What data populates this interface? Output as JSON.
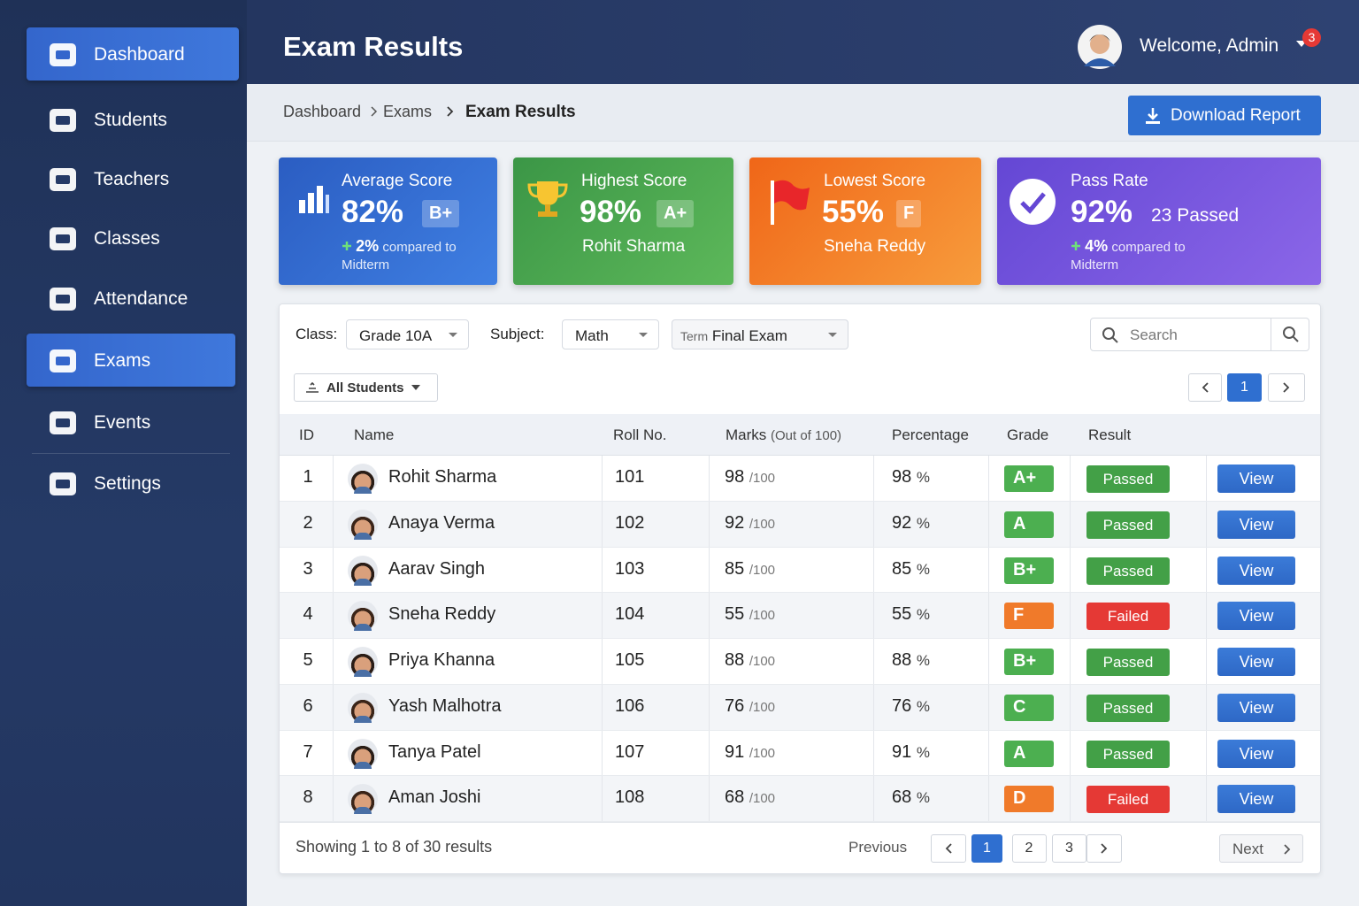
{
  "sidebar": {
    "items": [
      {
        "label": "Dashboard",
        "active": true
      },
      {
        "label": "Students",
        "active": false
      },
      {
        "label": "Teachers",
        "active": false
      },
      {
        "label": "Classes",
        "active": false
      },
      {
        "label": "Attendance",
        "active": false
      },
      {
        "label": "Exams",
        "active": true
      },
      {
        "label": "Events",
        "active": false
      },
      {
        "label": "Settings",
        "active": false
      }
    ]
  },
  "header": {
    "title": "Exam Results",
    "welcome": "Welcome, Admin",
    "notifications": 3
  },
  "breadcrumb": [
    "Dashboard",
    "Exams",
    "Exam Results"
  ],
  "download_button": "Download Report",
  "cards": [
    {
      "label": "Average Score",
      "value": "82%",
      "badge": "B+",
      "change": "2%",
      "note": "compared to Midterm"
    },
    {
      "label": "Highest Score",
      "value": "98%",
      "badge": "A+",
      "student": "Rohit Sharma"
    },
    {
      "label": "Lowest Score",
      "value": "55%",
      "badge": "F",
      "student": "Sneha Reddy"
    },
    {
      "label": "Pass Rate",
      "value": "92%",
      "detail": "23 Passed",
      "change": "4%",
      "note": "compared to Midterm"
    }
  ],
  "filters": {
    "class_label": "Class:",
    "class_value": "Grade 10A",
    "subject_label": "Subject:",
    "subject_value": "Math",
    "term_label": "Term",
    "term_value": "Final Exam",
    "search_placeholder": "Search",
    "group": "All Students",
    "page": 1
  },
  "table": {
    "columns": [
      "ID",
      "Name",
      "Roll No.",
      "Marks",
      "Percentage",
      "Grade",
      "Result"
    ],
    "marks_note": "(Out of 100)",
    "marks_suffix": "/100",
    "percent_unit": "%",
    "action": "View",
    "rows": [
      {
        "id": 1,
        "name": "Rohit Sharma",
        "roll": 101,
        "marks": 98,
        "percentage": 98,
        "grade": "A+",
        "grade_color": "#4caf50",
        "result": "Passed",
        "result_color": "#43a047"
      },
      {
        "id": 2,
        "name": "Anaya Verma",
        "roll": 102,
        "marks": 92,
        "percentage": 92,
        "grade": "A",
        "grade_color": "#4caf50",
        "result": "Passed",
        "result_color": "#43a047"
      },
      {
        "id": 3,
        "name": "Aarav Singh",
        "roll": 103,
        "marks": 85,
        "percentage": 85,
        "grade": "B+",
        "grade_color": "#4caf50",
        "result": "Passed",
        "result_color": "#43a047"
      },
      {
        "id": 4,
        "name": "Sneha Reddy",
        "roll": 104,
        "marks": 55,
        "percentage": 55,
        "grade": "F",
        "grade_color": "#f07a2a",
        "result": "Failed",
        "result_color": "#e53935"
      },
      {
        "id": 5,
        "name": "Priya Khanna",
        "roll": 105,
        "marks": 88,
        "percentage": 88,
        "grade": "B+",
        "grade_color": "#4caf50",
        "result": "Passed",
        "result_color": "#43a047"
      },
      {
        "id": 6,
        "name": "Yash Malhotra",
        "roll": 106,
        "marks": 76,
        "percentage": 76,
        "grade": "C",
        "grade_color": "#4caf50",
        "result": "Passed",
        "result_color": "#43a047"
      },
      {
        "id": 7,
        "name": "Tanya Patel",
        "roll": 107,
        "marks": 91,
        "percentage": 91,
        "grade": "A",
        "grade_color": "#4caf50",
        "result": "Passed",
        "result_color": "#43a047"
      },
      {
        "id": 8,
        "name": "Aman Joshi",
        "roll": 108,
        "marks": 68,
        "percentage": 68,
        "grade": "D",
        "grade_color": "#f07a2a",
        "result": "Failed",
        "result_color": "#e53935"
      }
    ]
  },
  "footer": {
    "summary": "Showing 1 to 8 of 30 results",
    "previous": "Previous",
    "pages": [
      1,
      2,
      3
    ],
    "current_page": 1,
    "next": "Next"
  }
}
